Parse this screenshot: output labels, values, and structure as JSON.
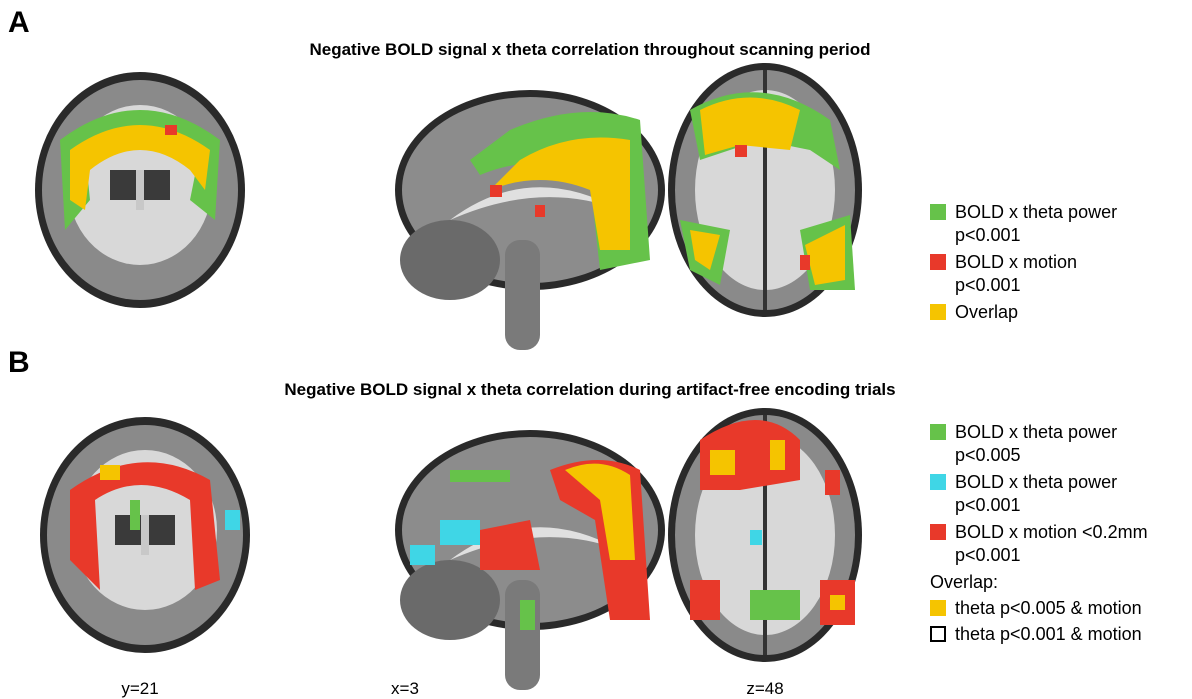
{
  "panels": [
    {
      "label": "A",
      "title": "Negative BOLD signal x theta correlation throughout scanning period",
      "legend": [
        {
          "lines": [
            "BOLD x theta power",
            "p<0.001"
          ],
          "color": "#66c24a"
        },
        {
          "lines": [
            "BOLD x motion",
            "p<0.001"
          ],
          "color": "#e8392a"
        },
        {
          "lines": [
            "Overlap"
          ],
          "color": "#f5c400"
        }
      ]
    },
    {
      "label": "B",
      "title": "Negative BOLD signal x theta correlation during artifact-free encoding trials",
      "legend": [
        {
          "lines": [
            "BOLD x theta power",
            "p<0.005"
          ],
          "color": "#66c24a"
        },
        {
          "lines": [
            "BOLD x theta power",
            "p<0.001"
          ],
          "color": "#3fd6e6"
        },
        {
          "lines": [
            "BOLD x motion <0.2mm",
            "p<0.001"
          ],
          "color": "#e8392a"
        },
        {
          "lines": [
            "Overlap:"
          ]
        },
        {
          "lines": [
            "theta p<0.005 & motion"
          ],
          "color": "#f5c400"
        },
        {
          "lines": [
            "theta p<0.001 & motion"
          ],
          "color": "#000000",
          "outline": true
        }
      ]
    }
  ],
  "slice_labels": [
    "y=21",
    "x=3",
    "z=48"
  ]
}
